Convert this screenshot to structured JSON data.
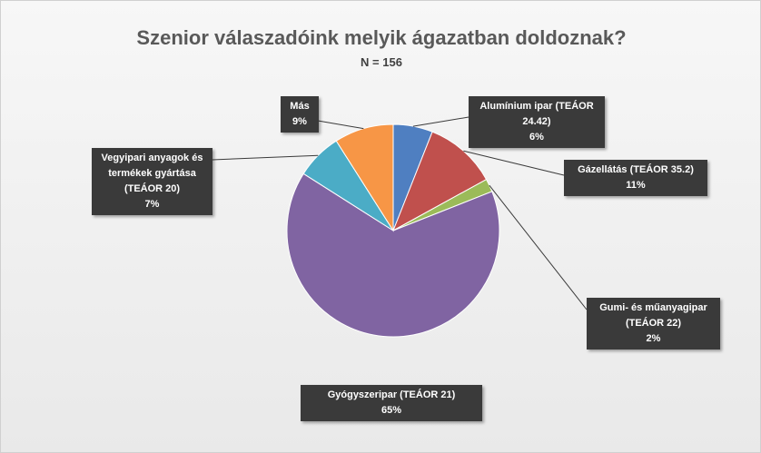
{
  "chart_data": {
    "type": "pie",
    "title": "Szenior válaszadóink melyik ágazatban doldoznak?",
    "subtitle": "N = 156",
    "categories": [
      "Alumínium ipar (TEÁOR 24.42)",
      "Gázellátás (TEÁOR 35.2)",
      "Gumi- és műanyagipar (TEÁOR 22)",
      "Gyógyszeripar (TEÁOR 21)",
      "Vegyipari anyagok és termékek gyártása (TEÁOR 20)",
      "Más"
    ],
    "values": [
      6,
      11,
      2,
      65,
      7,
      9
    ],
    "value_labels": [
      "6%",
      "11%",
      "2%",
      "65%",
      "7%",
      "9%"
    ],
    "colors": [
      "#4f7fc1",
      "#c0504d",
      "#9bbb59",
      "#8064a2",
      "#4bacc6",
      "#f79646"
    ]
  }
}
